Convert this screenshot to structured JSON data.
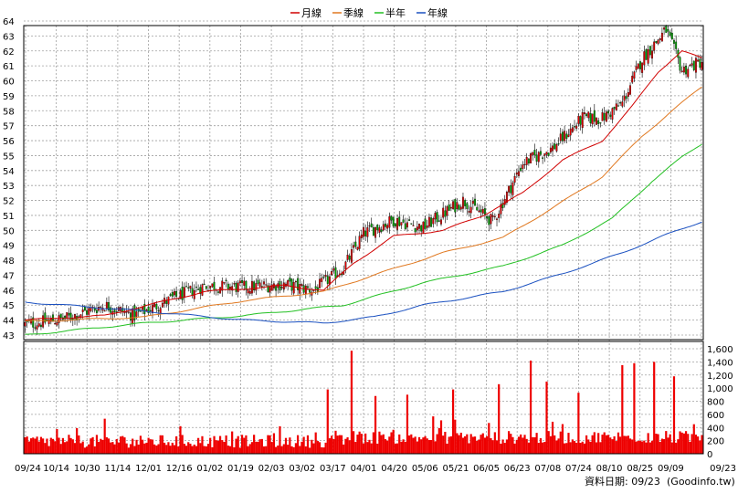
{
  "legend": {
    "items": [
      {
        "label": "月線",
        "color": "#d00000"
      },
      {
        "label": "季線",
        "color": "#e07820"
      },
      {
        "label": "半年",
        "color": "#22c022"
      },
      {
        "label": "年線",
        "color": "#1a50c0"
      }
    ]
  },
  "footer": {
    "date_label": "資料日期: 09/23",
    "source": "(Goodinfo.tw)"
  },
  "chart_data": {
    "type": "candlestick-with-volume",
    "price_axis": {
      "min": 43,
      "max": 64,
      "ticks": [
        43,
        44,
        45,
        46,
        47,
        48,
        49,
        50,
        51,
        52,
        53,
        54,
        55,
        56,
        57,
        58,
        59,
        60,
        61,
        62,
        63,
        64
      ]
    },
    "volume_axis": {
      "min": 0,
      "max": 1600,
      "tick_labels": [
        "0",
        "200",
        "400",
        "600",
        "800",
        "1,000",
        "1,200",
        "1,400",
        "1,600"
      ]
    },
    "x_ticks": [
      "09/24",
      "10/14",
      "10/30",
      "11/14",
      "12/01",
      "12/16",
      "01/02",
      "01/19",
      "02/03",
      "03/02",
      "03/17",
      "04/01",
      "04/20",
      "05/06",
      "05/21",
      "06/05",
      "06/23",
      "07/08",
      "07/24",
      "08/10",
      "08/25",
      "09/09",
      "09/23"
    ],
    "grid": true,
    "close_anchors": [
      [
        0,
        43.7
      ],
      [
        20,
        44.1
      ],
      [
        40,
        45.0
      ],
      [
        55,
        44.3
      ],
      [
        75,
        45.5
      ],
      [
        90,
        46.3
      ],
      [
        110,
        46.2
      ],
      [
        130,
        46.4
      ],
      [
        145,
        46.0
      ],
      [
        160,
        47.5
      ],
      [
        170,
        49.8
      ],
      [
        185,
        50.7
      ],
      [
        200,
        50.2
      ],
      [
        220,
        52.0
      ],
      [
        235,
        50.6
      ],
      [
        250,
        54.5
      ],
      [
        265,
        55.5
      ],
      [
        280,
        57.5
      ],
      [
        290,
        57.5
      ],
      [
        300,
        58.5
      ],
      [
        310,
        61.5
      ],
      [
        322,
        63.4
      ],
      [
        330,
        60.7
      ],
      [
        340,
        61.3
      ]
    ],
    "moving_averages": [
      {
        "name": "月線",
        "color": "#d00000",
        "points": [
          [
            0,
            44.0
          ],
          [
            40,
            44.3
          ],
          [
            90,
            45.9
          ],
          [
            130,
            46.3
          ],
          [
            150,
            46.0
          ],
          [
            165,
            47.8
          ],
          [
            185,
            49.6
          ],
          [
            210,
            50.0
          ],
          [
            230,
            51.0
          ],
          [
            250,
            52.5
          ],
          [
            270,
            54.7
          ],
          [
            290,
            56.0
          ],
          [
            305,
            58.3
          ],
          [
            318,
            60.6
          ],
          [
            330,
            62.0
          ],
          [
            340,
            61.5
          ]
        ]
      },
      {
        "name": "季線",
        "color": "#e07820",
        "points": [
          [
            0,
            43.9
          ],
          [
            60,
            44.2
          ],
          [
            110,
            45.3
          ],
          [
            150,
            45.9
          ],
          [
            175,
            47.0
          ],
          [
            210,
            48.5
          ],
          [
            240,
            49.5
          ],
          [
            265,
            51.5
          ],
          [
            290,
            53.6
          ],
          [
            310,
            56.3
          ],
          [
            325,
            58.0
          ],
          [
            340,
            59.6
          ]
        ]
      },
      {
        "name": "半年",
        "color": "#22c022",
        "points": [
          [
            0,
            43.0
          ],
          [
            60,
            43.8
          ],
          [
            110,
            44.3
          ],
          [
            160,
            45.0
          ],
          [
            200,
            46.5
          ],
          [
            240,
            47.6
          ],
          [
            270,
            49.0
          ],
          [
            295,
            50.8
          ],
          [
            315,
            53.3
          ],
          [
            330,
            54.9
          ],
          [
            340,
            55.8
          ]
        ]
      },
      {
        "name": "年線",
        "color": "#1a50c0",
        "points": [
          [
            0,
            45.2
          ],
          [
            60,
            44.6
          ],
          [
            110,
            44.0
          ],
          [
            150,
            43.8
          ],
          [
            175,
            44.2
          ],
          [
            200,
            45.0
          ],
          [
            240,
            45.9
          ],
          [
            270,
            47.1
          ],
          [
            300,
            48.5
          ],
          [
            320,
            49.6
          ],
          [
            340,
            50.6
          ]
        ]
      }
    ],
    "volume_spikes": [
      [
        26,
        390
      ],
      [
        78,
        420
      ],
      [
        152,
        980
      ],
      [
        164,
        1570
      ],
      [
        176,
        880
      ],
      [
        192,
        900
      ],
      [
        215,
        980
      ],
      [
        238,
        1060
      ],
      [
        254,
        1420
      ],
      [
        262,
        1100
      ],
      [
        278,
        930
      ],
      [
        300,
        1350
      ],
      [
        306,
        1380
      ],
      [
        316,
        1400
      ],
      [
        326,
        1180
      ],
      [
        336,
        450
      ]
    ]
  }
}
